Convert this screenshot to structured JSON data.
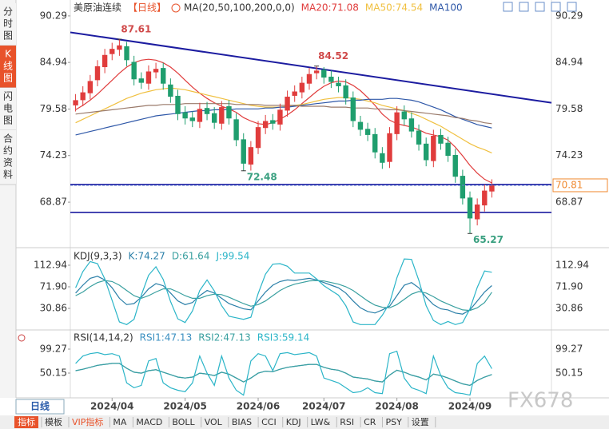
{
  "ui": {
    "symbol": "美原油连续",
    "period": "【日线】",
    "tabs": [
      "分时图",
      "K线图",
      "闪电图",
      "合约资料"
    ],
    "active_tab": 1,
    "bottom_tab": "日线",
    "toolbar": [
      "指标",
      "模板",
      "VIP指标",
      "MA",
      "MACD",
      "BOLL",
      "VOL",
      "BIAS",
      "CCI",
      "KDJ",
      "LW&",
      "RSI",
      "CR",
      "PSY",
      "设置"
    ],
    "active_tool": 0,
    "vip_tool": 2,
    "watermark": "FX678"
  },
  "chart_data": [
    {
      "type": "candlestick",
      "indicator_label": "MA(20,50,100,200,0,0)",
      "up_color": "#e03c3c",
      "down_color": "#1f9e6e",
      "categories": [
        null,
        null,
        null,
        null,
        null,
        "2024/04",
        null,
        null,
        null,
        null,
        null,
        null,
        null,
        null,
        null,
        "2024/05",
        null,
        null,
        null,
        null,
        null,
        null,
        null,
        null,
        null,
        "2024/06",
        null,
        null,
        null,
        null,
        null,
        null,
        null,
        null,
        "2024/07",
        null,
        null,
        null,
        null,
        null,
        null,
        null,
        null,
        null,
        "2024/08",
        null,
        null,
        null,
        null,
        null,
        null,
        null,
        null,
        null,
        "2024/09",
        null,
        null,
        null
      ],
      "open": [
        80.0,
        80.6,
        81.4,
        82.9,
        84.4,
        85.9,
        86.4,
        86.8,
        85.0,
        83.1,
        82.5,
        83.8,
        84.3,
        82.4,
        81.1,
        79.2,
        78.6,
        78.1,
        79.7,
        79.1,
        77.9,
        79.9,
        78.4,
        76.1,
        73.2,
        75.1,
        77.4,
        78.3,
        77.8,
        79.4,
        81.1,
        81.5,
        82.5,
        83.7,
        84.1,
        83.3,
        82.6,
        82.3,
        80.9,
        78.1,
        77.3,
        76.7,
        74.5,
        73.5,
        76.7,
        79.3,
        78.5,
        77.1,
        75.6,
        73.6,
        76.6,
        75.7,
        74.3,
        71.9,
        69.4,
        66.9,
        68.5,
        70.1
      ],
      "high": [
        81.3,
        82.2,
        83.5,
        85.2,
        86.5,
        87.2,
        87.61,
        87.3,
        85.7,
        83.8,
        84.6,
        84.9,
        84.9,
        83.1,
        81.8,
        79.9,
        79.3,
        80.3,
        80.4,
        79.8,
        80.5,
        80.6,
        79.1,
        76.8,
        75.9,
        78.2,
        78.9,
        79.0,
        80.2,
        81.7,
        82.3,
        83.3,
        84.3,
        84.52,
        84.4,
        84.0,
        83.3,
        83.0,
        81.6,
        78.8,
        78.0,
        77.4,
        75.2,
        77.5,
        79.9,
        80.0,
        79.2,
        77.8,
        76.3,
        77.2,
        77.3,
        76.4,
        75.0,
        72.6,
        70.1,
        69.3,
        70.9,
        71.5
      ],
      "low": [
        79.3,
        79.9,
        80.7,
        82.2,
        83.7,
        85.2,
        85.7,
        84.5,
        82.3,
        81.9,
        81.8,
        83.1,
        81.8,
        80.3,
        78.3,
        77.8,
        77.5,
        77.4,
        78.3,
        77.3,
        77.2,
        77.8,
        75.3,
        72.48,
        72.5,
        74.4,
        76.7,
        77.2,
        77.1,
        78.7,
        80.4,
        80.8,
        81.8,
        83.0,
        82.5,
        82.0,
        81.5,
        80.1,
        77.5,
        76.5,
        75.9,
        73.9,
        72.7,
        72.8,
        76.0,
        77.7,
        76.3,
        74.8,
        73.0,
        72.9,
        74.9,
        73.5,
        71.1,
        68.6,
        65.27,
        66.2,
        67.8,
        69.4
      ],
      "close": [
        80.6,
        81.5,
        82.8,
        84.5,
        85.8,
        86.5,
        86.9,
        85.2,
        83.0,
        82.6,
        83.9,
        84.2,
        82.5,
        81.0,
        79.0,
        78.5,
        78.2,
        79.6,
        79.0,
        78.0,
        79.8,
        78.5,
        76.0,
        73.3,
        75.2,
        77.5,
        78.2,
        77.9,
        79.5,
        81.0,
        81.6,
        82.6,
        83.6,
        84.0,
        83.2,
        82.7,
        82.2,
        80.8,
        78.2,
        77.2,
        76.6,
        74.6,
        73.4,
        76.8,
        79.2,
        78.4,
        77.0,
        75.5,
        73.7,
        76.5,
        75.6,
        74.2,
        71.8,
        69.3,
        67.0,
        68.6,
        70.2,
        70.81
      ],
      "ylim": [
        64.1,
        91.2
      ],
      "yticks": [
        90.29,
        84.94,
        79.58,
        74.23,
        68.87
      ],
      "series": [
        {
          "name": "MA20:71.08",
          "color": "#e03c3c",
          "values": [
            79.5,
            80.0,
            80.6,
            81.3,
            82.1,
            82.9,
            83.7,
            84.4,
            84.9,
            85.2,
            85.3,
            85.2,
            84.9,
            84.4,
            83.7,
            82.9,
            82.1,
            81.4,
            80.8,
            80.3,
            79.9,
            79.6,
            79.2,
            78.6,
            78.2,
            77.9,
            77.8,
            78.0,
            78.4,
            78.9,
            79.5,
            80.2,
            80.9,
            81.6,
            82.2,
            82.6,
            82.8,
            82.7,
            82.3,
            81.7,
            80.9,
            80.0,
            79.0,
            78.3,
            77.9,
            77.7,
            77.5,
            77.2,
            76.8,
            76.6,
            76.4,
            76.0,
            75.2,
            74.2,
            73.1,
            72.2,
            71.5,
            71.08
          ]
        },
        {
          "name": "MA50:74.54",
          "color": "#f0c040",
          "values": [
            78.0,
            78.4,
            78.8,
            79.2,
            79.6,
            80.0,
            80.4,
            80.8,
            81.1,
            81.4,
            81.6,
            81.8,
            81.9,
            82.0,
            81.9,
            81.8,
            81.6,
            81.4,
            81.2,
            81.0,
            80.8,
            80.6,
            80.4,
            80.2,
            80.0,
            79.9,
            79.8,
            79.8,
            79.8,
            79.9,
            80.0,
            80.1,
            80.3,
            80.5,
            80.7,
            80.8,
            80.9,
            80.9,
            80.8,
            80.7,
            80.5,
            80.3,
            80.0,
            79.8,
            79.6,
            79.4,
            79.1,
            78.8,
            78.4,
            78.0,
            77.6,
            77.1,
            76.6,
            76.1,
            75.6,
            75.2,
            74.9,
            74.54
          ]
        },
        {
          "name": "MA100",
          "color": "#2f58a8",
          "values": [
            76.6,
            76.8,
            77.0,
            77.2,
            77.4,
            77.6,
            77.8,
            78.0,
            78.2,
            78.4,
            78.6,
            78.8,
            78.9,
            79.0,
            79.1,
            79.2,
            79.3,
            79.4,
            79.4,
            79.5,
            79.5,
            79.5,
            79.6,
            79.6,
            79.6,
            79.6,
            79.7,
            79.7,
            79.8,
            79.8,
            79.9,
            80.0,
            80.1,
            80.2,
            80.3,
            80.4,
            80.5,
            80.5,
            80.6,
            80.6,
            80.7,
            80.7,
            80.7,
            80.8,
            80.8,
            80.7,
            80.6,
            80.4,
            80.1,
            79.8,
            79.5,
            79.1,
            78.7,
            78.4,
            78.1,
            77.8,
            77.6,
            77.4
          ]
        },
        {
          "color": "#9a7a6a",
          "values": [
            79.0,
            79.1,
            79.2,
            79.3,
            79.4,
            79.5,
            79.6,
            79.7,
            79.8,
            79.9,
            80.0,
            80.0,
            80.1,
            80.1,
            80.1,
            80.2,
            80.2,
            80.2,
            80.2,
            80.2,
            80.2,
            80.2,
            80.1,
            80.1,
            80.1,
            80.1,
            80.0,
            80.0,
            80.0,
            80.0,
            80.0,
            79.9,
            79.9,
            79.9,
            79.9,
            79.8,
            79.8,
            79.8,
            79.7,
            79.7,
            79.7,
            79.6,
            79.6,
            79.5,
            79.5,
            79.4,
            79.3,
            79.2,
            79.1,
            79.0,
            78.9,
            78.8,
            78.6,
            78.5,
            78.3,
            78.2,
            78.0,
            77.9
          ]
        }
      ],
      "trendlines": [
        {
          "values": [
            88.4,
            80.3
          ],
          "color": "#1c1ca0"
        }
      ],
      "hlines": {
        "values": [
          70.9,
          67.7
        ],
        "color": "#1c1ca0"
      },
      "last_color": "#5a7ad0",
      "label_color": "#f08a30",
      "high_color": "#d04a4a",
      "low_color": "#3aa080"
    },
    {
      "type": "line",
      "title": "KDJ(9,3,3)",
      "ylim": [
        -5.6,
        138.8
      ],
      "yticks": [
        112.94,
        {
          "value": 71.9,
          "label": "71.90"
        },
        30.86
      ],
      "series": [
        {
          "name": "K:74.27",
          "color": "#2a7fa8",
          "values": [
            60,
            75,
            88,
            92,
            85,
            70,
            50,
            38,
            40,
            52,
            68,
            78,
            74,
            60,
            45,
            38,
            42,
            55,
            65,
            60,
            50,
            40,
            35,
            30,
            28,
            45,
            62,
            75,
            82,
            85,
            84,
            86,
            88,
            85,
            80,
            75,
            70,
            60,
            45,
            32,
            25,
            22,
            28,
            35,
            55,
            75,
            80,
            70,
            52,
            38,
            30,
            28,
            22,
            20,
            28,
            45,
            62,
            74.27
          ]
        },
        {
          "name": "D:61.64",
          "color": "#3aa0a0",
          "values": [
            55,
            62,
            72,
            80,
            84,
            82,
            75,
            65,
            55,
            50,
            55,
            62,
            68,
            68,
            62,
            55,
            50,
            50,
            55,
            58,
            57,
            52,
            46,
            40,
            35,
            38,
            45,
            55,
            65,
            72,
            77,
            80,
            83,
            84,
            83,
            80,
            77,
            72,
            65,
            55,
            45,
            37,
            33,
            32,
            38,
            48,
            58,
            63,
            60,
            53,
            45,
            39,
            33,
            28,
            27,
            32,
            42,
            61.64
          ]
        },
        {
          "name": "J:99.54",
          "color": "#2bb5c8",
          "values": [
            70,
            101,
            120,
            116,
            87,
            46,
            5,
            0,
            10,
            56,
            94,
            110,
            86,
            44,
            11,
            4,
            26,
            65,
            85,
            64,
            36,
            16,
            13,
            10,
            14,
            59,
            96,
            115,
            116,
            111,
            98,
            98,
            98,
            87,
            74,
            65,
            56,
            36,
            5,
            0,
            0,
            0,
            18,
            41,
            89,
            125,
            124,
            84,
            36,
            8,
            0,
            6,
            0,
            4,
            30,
            71,
            102,
            99.54
          ]
        }
      ]
    },
    {
      "type": "line",
      "title": "RSI(14,14,2)",
      "ylim": [
        4.3,
        132
      ],
      "yticks": [
        99.27,
        50.15
      ],
      "series": [
        {
          "name": "RSI1:47.13",
          "color": "#3a8fc0",
          "values": [
            55,
            58,
            62,
            66,
            68,
            70,
            70,
            60,
            52,
            50,
            55,
            57,
            52,
            47,
            42,
            40,
            42,
            50,
            48,
            45,
            52,
            48,
            40,
            32,
            40,
            50,
            54,
            53,
            58,
            62,
            64,
            66,
            68,
            68,
            62,
            58,
            56,
            50,
            42,
            40,
            38,
            34,
            32,
            46,
            56,
            52,
            46,
            42,
            36,
            48,
            45,
            40,
            34,
            28,
            25,
            35,
            42,
            47.13
          ]
        },
        {
          "name": "RSI2:47.13",
          "color": "#3aa0a0",
          "values": [
            55,
            58,
            62,
            66,
            68,
            70,
            70,
            60,
            52,
            50,
            55,
            57,
            52,
            47,
            42,
            40,
            42,
            50,
            48,
            45,
            52,
            48,
            40,
            32,
            40,
            50,
            54,
            53,
            58,
            62,
            64,
            66,
            68,
            68,
            62,
            58,
            56,
            50,
            42,
            40,
            38,
            34,
            32,
            46,
            56,
            52,
            46,
            42,
            36,
            48,
            45,
            40,
            34,
            28,
            25,
            35,
            42,
            47.13
          ]
        },
        {
          "name": "RSI3:59.14",
          "color": "#2bb5c8",
          "values": [
            70,
            85,
            90,
            92,
            88,
            90,
            85,
            30,
            20,
            25,
            75,
            80,
            30,
            20,
            15,
            12,
            30,
            85,
            50,
            25,
            85,
            40,
            15,
            5,
            75,
            90,
            85,
            55,
            90,
            92,
            88,
            90,
            92,
            85,
            40,
            35,
            30,
            20,
            10,
            12,
            20,
            10,
            8,
            90,
            95,
            40,
            20,
            15,
            8,
            85,
            45,
            20,
            10,
            8,
            5,
            70,
            85,
            59.14
          ]
        }
      ]
    }
  ]
}
